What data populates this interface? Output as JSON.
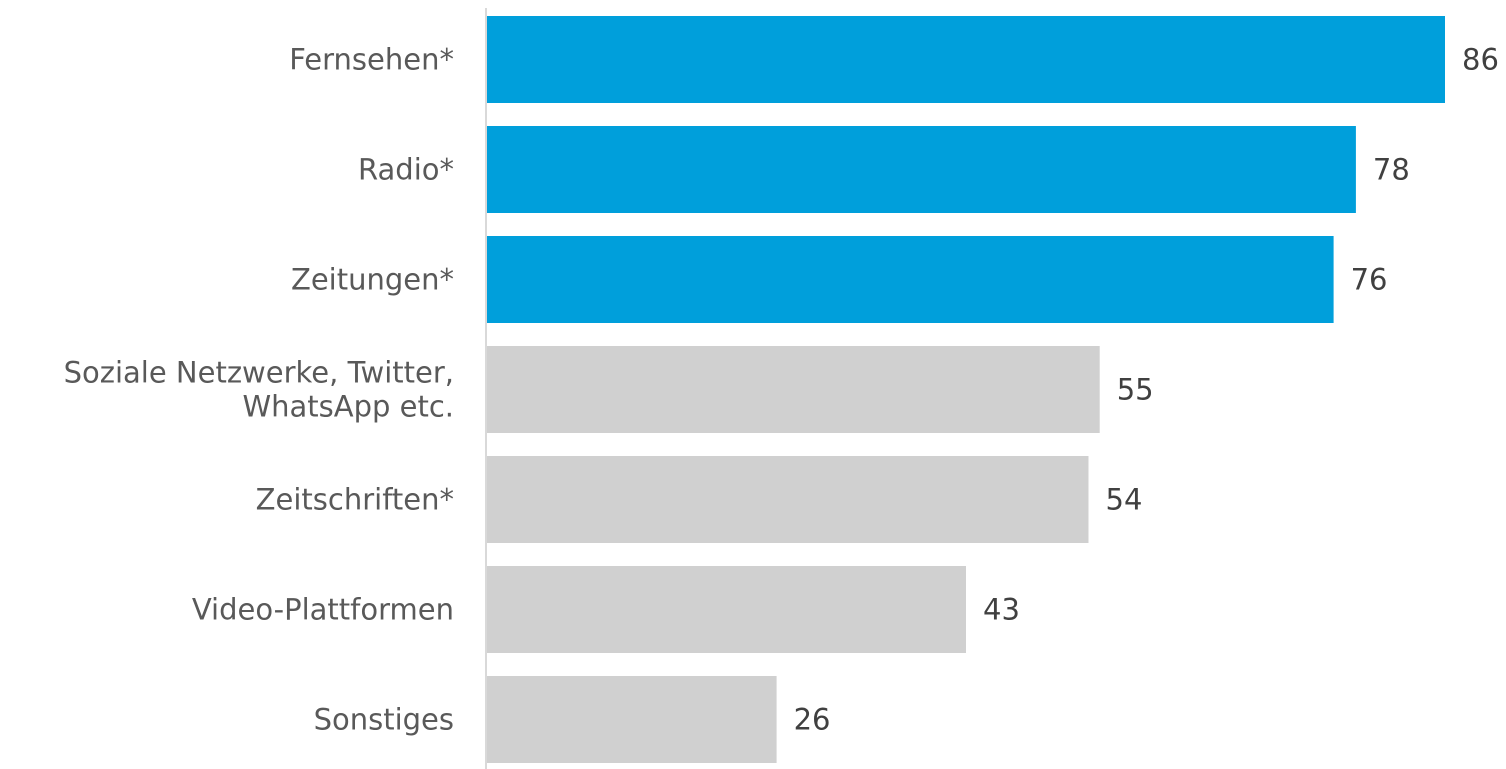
{
  "chart_data": {
    "type": "bar",
    "orientation": "horizontal",
    "categories": [
      [
        "Fernsehen*"
      ],
      [
        "Radio*"
      ],
      [
        "Zeitungen*"
      ],
      [
        "Soziale Netzwerke, Twitter,",
        "WhatsApp etc."
      ],
      [
        "Zeitschriften*"
      ],
      [
        "Video-Plattformen"
      ],
      [
        "Sonstiges"
      ]
    ],
    "values": [
      86,
      78,
      76,
      55,
      54,
      43,
      26
    ],
    "highlighted": [
      true,
      true,
      true,
      false,
      false,
      false,
      false
    ],
    "colors": {
      "highlight": "#009fdb",
      "default": "#d0d0d0",
      "axis": "#d9d9d9"
    },
    "xlim": [
      0,
      86
    ],
    "title": "",
    "xlabel": "",
    "ylabel": "",
    "grid": false,
    "legend": "none"
  }
}
